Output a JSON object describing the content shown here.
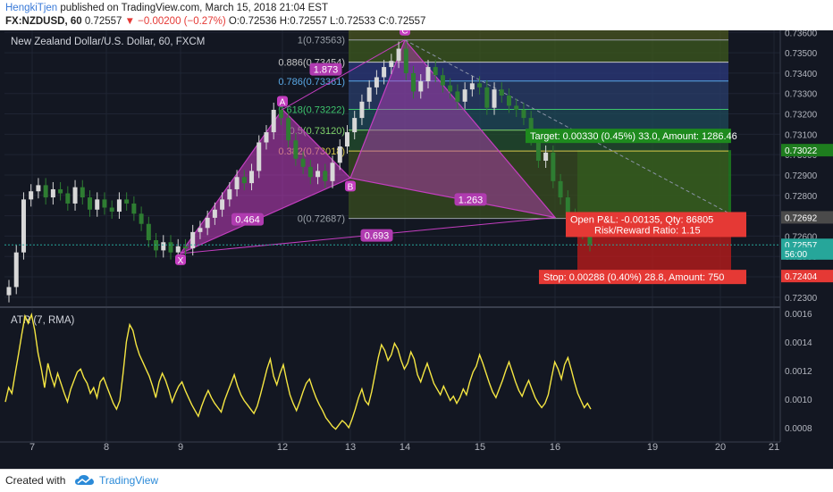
{
  "header": {
    "line1_user": "HengkiTjen",
    "line1_rest": " published on TradingView.com, March 15, 2018 21:04 EST",
    "line2_symbol": "FX:NZDUSD, 60",
    "line2_price": "0.72557",
    "line2_change": "▼ −0.00200 (−0.27%)",
    "line2_ohlc": "O:0.72536 H:0.72557 L:0.72533 C:0.72557"
  },
  "footer": {
    "created_with": "Created with",
    "brand": "TradingView"
  },
  "colors": {
    "background": "#131722",
    "up_candle": "#26a69a",
    "down_candle": "#ef5350",
    "pattern": "#c43ec0",
    "atr": "#f5e642",
    "target": "#1e7d1e",
    "stop": "#b71c1c"
  },
  "chart_data": [
    {
      "type": "candlestick",
      "title": "New Zealand Dollar/U.S. Dollar, 60, FXCM",
      "symbol": "FX:NZDUSD",
      "timeframe": "60",
      "x_ticks": [
        "7",
        "8",
        "9",
        "12",
        "13",
        "14",
        "15",
        "16",
        "19",
        "20",
        "21"
      ],
      "y_ticks": [
        "0.72300",
        "0.72400",
        "0.72500",
        "0.72600",
        "0.72700",
        "0.72800",
        "0.72900",
        "0.73000",
        "0.73100",
        "0.73200",
        "0.73300",
        "0.73400",
        "0.73500",
        "0.73600"
      ],
      "ylim": [
        0.7226,
        0.7361
      ],
      "close_path": [
        0.7235,
        0.7252,
        0.7278,
        0.7282,
        0.7285,
        0.7279,
        0.7283,
        0.7281,
        0.7276,
        0.7284,
        0.7279,
        0.7273,
        0.7278,
        0.7274,
        0.7272,
        0.7278,
        0.7276,
        0.7271,
        0.7266,
        0.7258,
        0.7253,
        0.7257,
        0.7252,
        0.7255,
        0.7254,
        0.7262,
        0.7264,
        0.7269,
        0.7273,
        0.7278,
        0.7283,
        0.7289,
        0.7286,
        0.7292,
        0.7306,
        0.7311,
        0.7322,
        0.7318,
        0.7307,
        0.7298,
        0.7294,
        0.7289,
        0.7292,
        0.7287,
        0.7296,
        0.7304,
        0.7311,
        0.7318,
        0.7326,
        0.7333,
        0.7338,
        0.7343,
        0.7346,
        0.7352,
        0.734,
        0.7331,
        0.7336,
        0.7343,
        0.7339,
        0.7334,
        0.7331,
        0.7326,
        0.7332,
        0.7335,
        0.7333,
        0.7323,
        0.7332,
        0.7329,
        0.7324,
        0.7322,
        0.7318,
        0.7308,
        0.7297,
        0.7301,
        0.7287,
        0.7279,
        0.727,
        0.7265,
        0.7262,
        0.7256
      ],
      "xabcd_pattern": {
        "points": [
          {
            "label": "X",
            "x": "9",
            "y": 0.72515
          },
          {
            "label": "A",
            "x": "12",
            "y": 0.73222
          },
          {
            "label": "B",
            "x": "13",
            "y": 0.72885
          },
          {
            "label": "C",
            "x": "14",
            "y": 0.73563
          },
          {
            "label": "D",
            "x": "16",
            "y": 0.72692
          }
        ],
        "ratios": [
          "0.464",
          "1.873",
          "1.263",
          "0.693"
        ]
      },
      "fibonacci": [
        {
          "label": "1(0.73563)",
          "ratio": 1,
          "value": 0.73563
        },
        {
          "label": "0.886(0.73454)",
          "ratio": 0.886,
          "value": 0.73454
        },
        {
          "label": "0.786(0.73361)",
          "ratio": 0.786,
          "value": 0.73361
        },
        {
          "label": "0.618(0.73222)",
          "ratio": 0.618,
          "value": 0.73222
        },
        {
          "label": "0.5(0.73120)",
          "ratio": 0.5,
          "value": 0.7312
        },
        {
          "label": "0.382(0.73018)",
          "ratio": 0.382,
          "value": 0.73018
        },
        {
          "label": "0(0.72687)",
          "ratio": 0,
          "value": 0.72687
        }
      ],
      "position": {
        "target_text": "Target: 0.00330 (0.45%) 33.0, Amount: 1286.46",
        "pnl_text": "Open P&L: -0.00135, Qty: 86805",
        "rr_text": "Risk/Reward Ratio: 1.15",
        "stop_text": "Stop: 0.00288 (0.40%) 28.8, Amount: 750",
        "target_price": 0.73022,
        "entry_price": 0.72692,
        "stop_price": 0.72404
      },
      "price_tags": [
        {
          "text": "0.73022",
          "value": 0.73022,
          "color": "#1e7d1e"
        },
        {
          "text": "0.72692",
          "value": 0.72692,
          "color": "#4a4a4a"
        },
        {
          "text": "0.72557",
          "value": 0.72557,
          "color": "#26a69a"
        },
        {
          "text": "56:00",
          "value": 0.72515,
          "color": "#26a69a"
        },
        {
          "text": "0.72404",
          "value": 0.72404,
          "color": "#e53935"
        }
      ]
    },
    {
      "type": "line",
      "title": "ATR (7, RMA)",
      "y_ticks": [
        "0.0016",
        "0.0014",
        "0.0012",
        "0.0010",
        "0.0008"
      ],
      "ylim": [
        0.0007,
        0.00163
      ],
      "series": [
        {
          "name": "ATR",
          "values": [
            0.00098,
            0.00108,
            0.00104,
            0.00118,
            0.00131,
            0.00145,
            0.00158,
            0.00153,
            0.00159,
            0.00148,
            0.00132,
            0.00121,
            0.00108,
            0.00125,
            0.00116,
            0.00109,
            0.00118,
            0.00111,
            0.00104,
            0.00098,
            0.00107,
            0.00113,
            0.00119,
            0.00121,
            0.00115,
            0.00111,
            0.00104,
            0.00108,
            0.00101,
            0.00112,
            0.00115,
            0.00109,
            0.00103,
            0.00097,
            0.00093,
            0.00099,
            0.00118,
            0.0014,
            0.00152,
            0.00148,
            0.00138,
            0.00131,
            0.00126,
            0.00121,
            0.00116,
            0.00109,
            0.00101,
            0.00112,
            0.00118,
            0.00113,
            0.00106,
            0.00098,
            0.00104,
            0.00109,
            0.00112,
            0.00106,
            0.00101,
            0.00096,
            0.00092,
            0.00088,
            0.00095,
            0.00101,
            0.00106,
            0.00101,
            0.00097,
            0.00094,
            0.00091,
            0.00099,
            0.00105,
            0.00111,
            0.00117,
            0.00109,
            0.00103,
            0.00099,
            0.00096,
            0.00093,
            0.0009,
            0.00095,
            0.00103,
            0.00112,
            0.00121,
            0.00128,
            0.00116,
            0.0011,
            0.00118,
            0.00124,
            0.00113,
            0.00103,
            0.00097,
            0.00092,
            0.00098,
            0.00105,
            0.00111,
            0.00114,
            0.00107,
            0.00101,
            0.00096,
            0.00092,
            0.00087,
            0.00084,
            0.00081,
            0.00079,
            0.00082,
            0.00085,
            0.00083,
            0.0008,
            0.00086,
            0.00093,
            0.00101,
            0.00107,
            0.00099,
            0.00096,
            0.00105,
            0.00117,
            0.00129,
            0.00138,
            0.00134,
            0.00127,
            0.00131,
            0.00139,
            0.00135,
            0.00127,
            0.00121,
            0.00125,
            0.00133,
            0.00128,
            0.00117,
            0.00112,
            0.00119,
            0.00125,
            0.00118,
            0.00111,
            0.00107,
            0.00103,
            0.00109,
            0.00104,
            0.00099,
            0.00102,
            0.00097,
            0.00101,
            0.00107,
            0.00103,
            0.00112,
            0.00119,
            0.00123,
            0.00131,
            0.00125,
            0.00118,
            0.00111,
            0.00105,
            0.00101,
            0.00107,
            0.00113,
            0.0012,
            0.00126,
            0.00119,
            0.00112,
            0.00106,
            0.00102,
            0.00108,
            0.00113,
            0.00107,
            0.00101,
            0.00097,
            0.00094,
            0.00097,
            0.00103,
            0.00115,
            0.00126,
            0.00121,
            0.00114,
            0.00124,
            0.00129,
            0.00121,
            0.00112,
            0.00104,
            0.00099,
            0.00094,
            0.00097,
            0.00093
          ]
        }
      ]
    }
  ]
}
